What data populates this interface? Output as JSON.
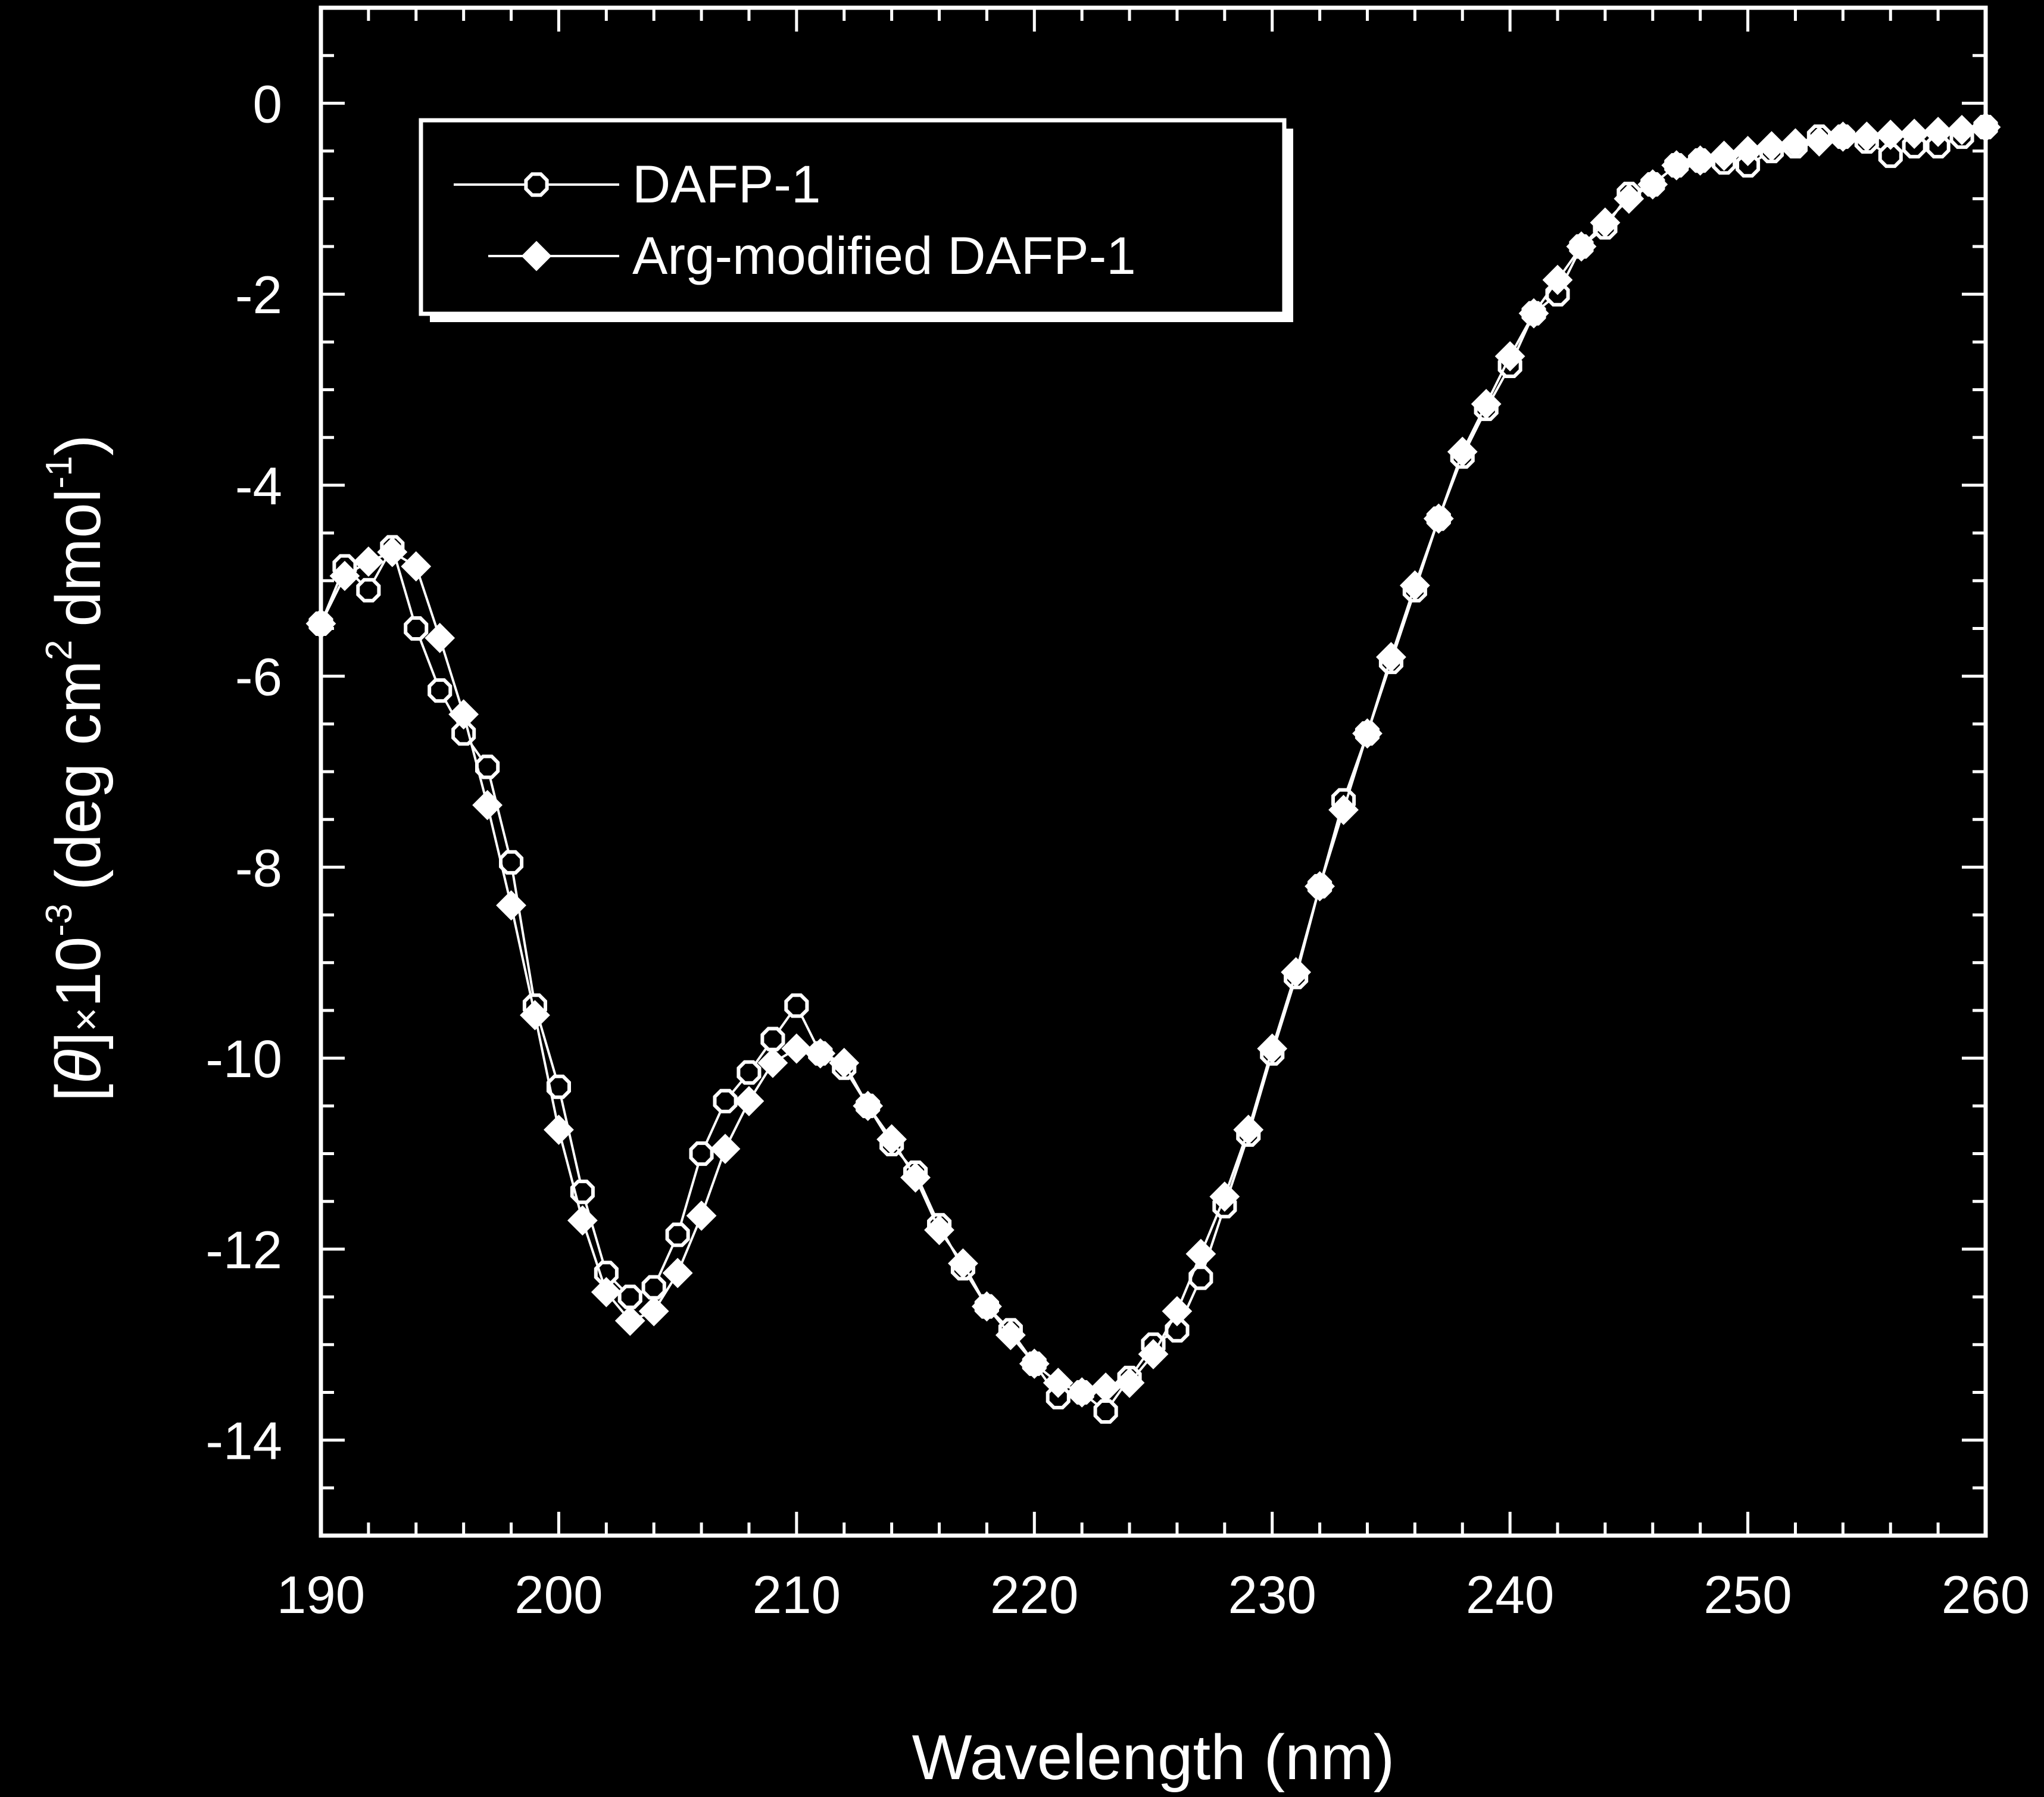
{
  "chart_data": {
    "type": "line",
    "xlabel": "Wavelength (nm)",
    "ylabel": {
      "bracket_open": "[",
      "symbol": "θ",
      "bracket_close": "]",
      "times": "×",
      "base": "10",
      "exp": "-3",
      "unit_open": "(deg cm",
      "cm_exp": "2",
      "unit_mid": "dmol",
      "dmol_exp": "-1",
      "unit_close": ")"
    },
    "xlim": [
      190,
      260
    ],
    "ylim": [
      -15,
      1
    ],
    "x_ticks": [
      "190",
      "200",
      "210",
      "220",
      "230",
      "240",
      "250",
      "260"
    ],
    "y_ticks": [
      "0",
      "-2",
      "-4",
      "-6",
      "-8",
      "-10",
      "-12",
      "-14"
    ],
    "legend_position": "top-left",
    "background": "#000000",
    "foreground": "#ffffff",
    "series": [
      {
        "name": "DAFP-1",
        "marker": "open-circle",
        "x": [
          190,
          191,
          192,
          193,
          194,
          195,
          196,
          197,
          198,
          199,
          200,
          201,
          202,
          203,
          204,
          205,
          206,
          207,
          208,
          209,
          210,
          211,
          212,
          213,
          214,
          215,
          216,
          217,
          218,
          219,
          220,
          221,
          222,
          223,
          224,
          225,
          226,
          227,
          228,
          229,
          230,
          231,
          232,
          233,
          234,
          235,
          236,
          237,
          238,
          239,
          240,
          241,
          242,
          243,
          244,
          245,
          246,
          247,
          248,
          249,
          250,
          251,
          252,
          253,
          254,
          255,
          256,
          257,
          258,
          259,
          260
        ],
        "y": [
          -5.45,
          -4.85,
          -5.1,
          -4.65,
          -5.5,
          -6.15,
          -6.6,
          -6.95,
          -7.95,
          -9.45,
          -10.3,
          -11.4,
          -12.25,
          -12.5,
          -12.4,
          -11.85,
          -11,
          -10.45,
          -10.15,
          -9.8,
          -9.45,
          -9.95,
          -10.1,
          -10.5,
          -10.9,
          -11.2,
          -11.75,
          -12.2,
          -12.6,
          -12.85,
          -13.2,
          -13.55,
          -13.5,
          -13.7,
          -13.35,
          -13,
          -12.85,
          -12.3,
          -11.55,
          -10.8,
          -9.95,
          -9.15,
          -8.2,
          -7.3,
          -6.6,
          -5.85,
          -5.1,
          -4.35,
          -3.7,
          -3.2,
          -2.75,
          -2.2,
          -2,
          -1.5,
          -1.3,
          -0.95,
          -0.85,
          -0.65,
          -0.6,
          -0.62,
          -0.65,
          -0.5,
          -0.45,
          -0.35,
          -0.35,
          -0.4,
          -0.55,
          -0.45,
          -0.45,
          -0.35,
          -0.25
        ]
      },
      {
        "name": "Arg-modified DAFP-1",
        "marker": "filled-diamond",
        "x": [
          190,
          191,
          192,
          193,
          194,
          195,
          196,
          197,
          198,
          199,
          200,
          201,
          202,
          203,
          204,
          205,
          206,
          207,
          208,
          209,
          210,
          211,
          212,
          213,
          214,
          215,
          216,
          217,
          218,
          219,
          220,
          221,
          222,
          223,
          224,
          225,
          226,
          227,
          228,
          229,
          230,
          231,
          232,
          233,
          234,
          235,
          236,
          237,
          238,
          239,
          240,
          241,
          242,
          243,
          244,
          245,
          246,
          247,
          248,
          249,
          250,
          251,
          252,
          253,
          254,
          255,
          256,
          257,
          258,
          259,
          260
        ],
        "y": [
          -5.45,
          -4.95,
          -4.8,
          -4.7,
          -4.85,
          -5.6,
          -6.4,
          -7.35,
          -8.4,
          -9.55,
          -10.75,
          -11.7,
          -12.45,
          -12.75,
          -12.65,
          -12.25,
          -11.65,
          -10.95,
          -10.45,
          -10.05,
          -9.9,
          -9.95,
          -10.05,
          -10.5,
          -10.85,
          -11.25,
          -11.8,
          -12.15,
          -12.6,
          -12.9,
          -13.2,
          -13.4,
          -13.5,
          -13.45,
          -13.4,
          -13.1,
          -12.65,
          -12.05,
          -11.45,
          -10.75,
          -9.9,
          -9.1,
          -8.2,
          -7.4,
          -6.6,
          -5.8,
          -5.05,
          -4.35,
          -3.65,
          -3.15,
          -2.65,
          -2.2,
          -1.85,
          -1.5,
          -1.25,
          -1.0,
          -0.85,
          -0.65,
          -0.6,
          -0.55,
          -0.5,
          -0.45,
          -0.42,
          -0.4,
          -0.35,
          -0.35,
          -0.33,
          -0.32,
          -0.3,
          -0.28,
          -0.25
        ]
      }
    ]
  }
}
